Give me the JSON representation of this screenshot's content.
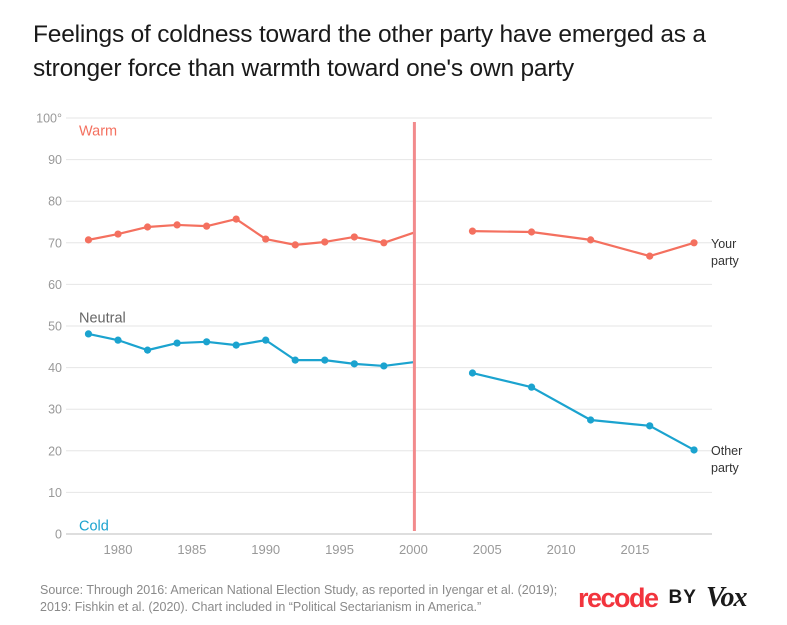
{
  "title": "Feelings of coldness toward the other party have emerged as a stronger force than warmth toward one's own party",
  "source": "Source: Through 2016: American National Election Study, as reported in Iyengar et al. (2019); 2019: Fishkin et al. (2020). Chart included in “Political Sectarianism in America.”",
  "logo": {
    "recode": "recode",
    "by": "BY",
    "vox": "Vox"
  },
  "colors": {
    "your_party": "#f4705f",
    "other_party": "#1ba3cf",
    "divider": "#f28a8c",
    "grid": "#e6e6e6",
    "tick": "#999999",
    "neutral": "#666666"
  },
  "chart_data": {
    "type": "line",
    "title": "Feelings of coldness toward the other party have emerged as a stronger force than warmth toward one's own party",
    "xlabel": "",
    "ylabel": "",
    "xlim": [
      1977,
      2020
    ],
    "ylim": [
      0,
      100
    ],
    "grid": true,
    "x_ticks": [
      1980,
      1985,
      1990,
      1995,
      2000,
      2005,
      2010,
      2015
    ],
    "y_ticks": [
      0,
      10,
      20,
      30,
      40,
      50,
      60,
      70,
      80,
      90,
      100
    ],
    "y_tick_labels": [
      "0",
      "10",
      "20",
      "30",
      "40",
      "50",
      "60",
      "70",
      "80",
      "90",
      "100°"
    ],
    "annotations": [
      {
        "text": "Warm",
        "y": 97,
        "color": "#f4705f"
      },
      {
        "text": "Neutral",
        "y": 52,
        "color": "#666666"
      },
      {
        "text": "Cold",
        "y": 2,
        "color": "#1ba3cf"
      }
    ],
    "divider_x": 2000,
    "series": [
      {
        "name": "Your party",
        "label_lines": [
          "Your",
          "party"
        ],
        "color": "#f4705f",
        "x": [
          1978,
          1980,
          1982,
          1984,
          1986,
          1988,
          1990,
          1992,
          1994,
          1996,
          1998,
          2000,
          2004,
          2008,
          2012,
          2016,
          2019
        ],
        "values": [
          70.7,
          72.1,
          73.8,
          74.3,
          74.0,
          75.7,
          70.9,
          69.5,
          70.2,
          71.4,
          70.0,
          72.4,
          72.8,
          72.6,
          70.7,
          66.8,
          70.0
        ]
      },
      {
        "name": "Other party",
        "label_lines": [
          "Other",
          "party"
        ],
        "color": "#1ba3cf",
        "x": [
          1978,
          1980,
          1982,
          1984,
          1986,
          1988,
          1990,
          1992,
          1994,
          1996,
          1998,
          2000,
          2004,
          2008,
          2012,
          2016,
          2019
        ],
        "values": [
          48.1,
          46.6,
          44.2,
          45.9,
          46.2,
          45.4,
          46.6,
          41.8,
          41.8,
          40.9,
          40.4,
          41.3,
          38.7,
          35.3,
          27.4,
          26.0,
          20.2
        ]
      }
    ]
  }
}
